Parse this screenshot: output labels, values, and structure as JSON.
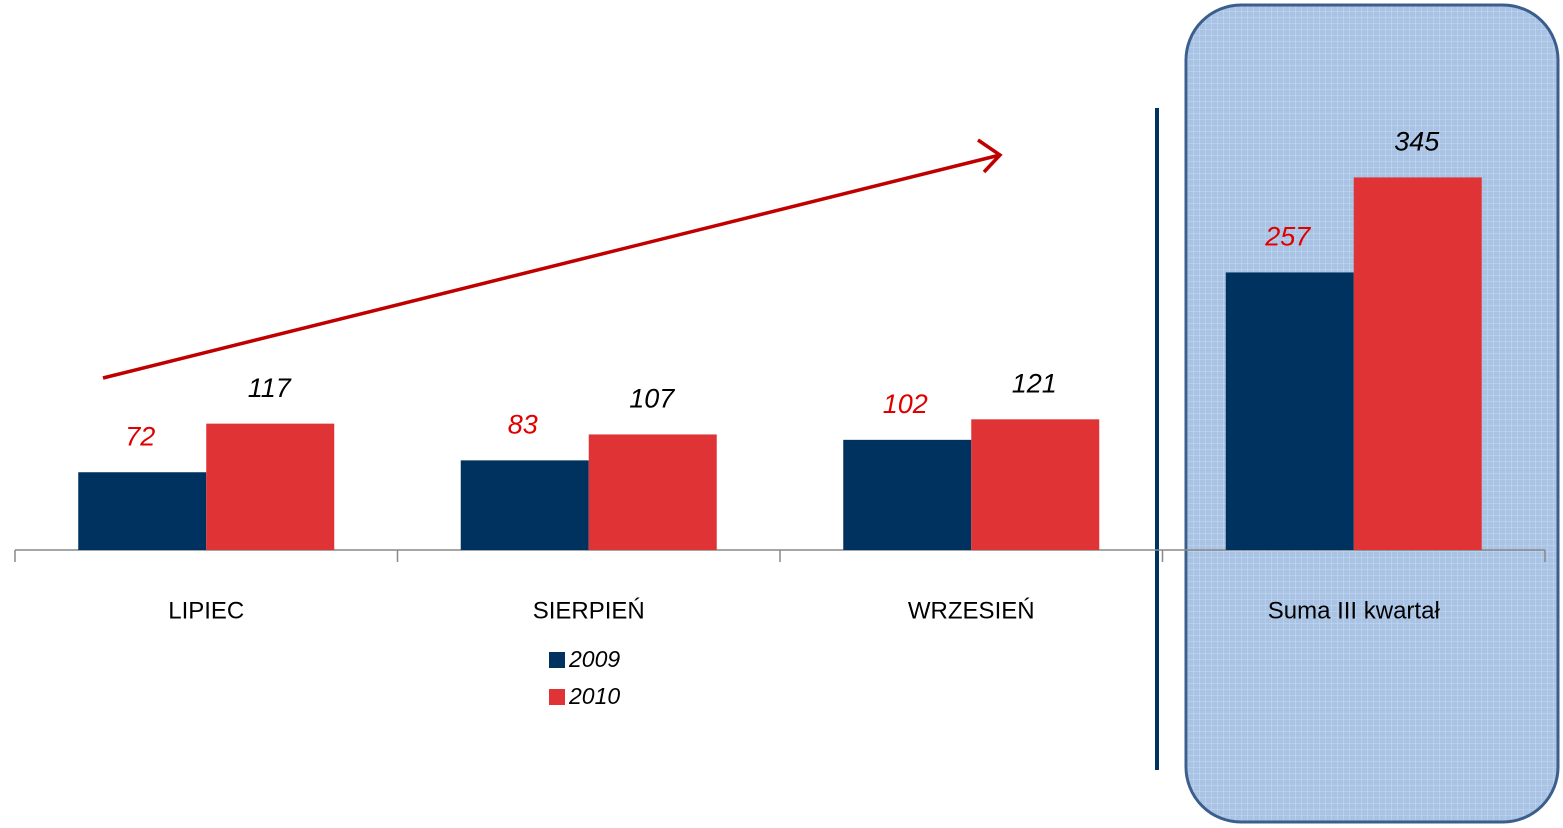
{
  "chart_data": {
    "type": "bar",
    "categories": [
      "LIPIEC",
      "SIERPIEŃ",
      "WRZESIEŃ",
      "Suma III kwartał"
    ],
    "series": [
      {
        "name": "2009",
        "color": "#00325f",
        "values": [
          72,
          83,
          102,
          257
        ]
      },
      {
        "name": "2010",
        "color": "#e03336",
        "values": [
          117,
          107,
          121,
          345
        ]
      }
    ]
  }
}
